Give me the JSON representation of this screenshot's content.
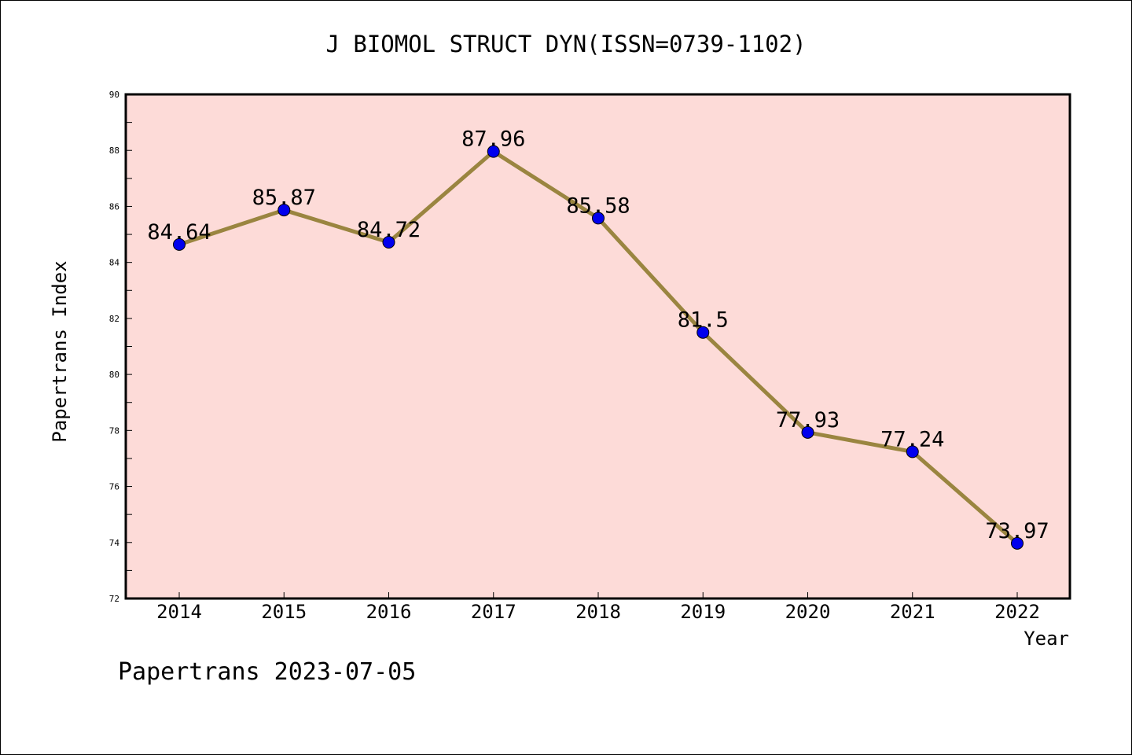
{
  "chart_data": {
    "type": "line",
    "title": "J BIOMOL STRUCT DYN(ISSN=0739-1102)",
    "xlabel": "Year",
    "ylabel": "Papertrans Index",
    "x": [
      "2014",
      "2015",
      "2016",
      "2017",
      "2018",
      "2019",
      "2020",
      "2021",
      "2022"
    ],
    "values": [
      84.64,
      85.87,
      84.72,
      87.96,
      85.58,
      81.5,
      77.93,
      77.24,
      73.97
    ],
    "data_labels": [
      "84.64",
      "85.87",
      "84.72",
      "87.96",
      "85.58",
      "81.5",
      "77.93",
      "77.24",
      "73.97"
    ],
    "ylim": [
      72,
      90
    ],
    "yticks": [
      "72",
      "74",
      "76",
      "78",
      "80",
      "82",
      "84",
      "86",
      "88",
      "90"
    ],
    "grid": false,
    "legend": "none",
    "colors": {
      "plot_background": "#fddbd8",
      "line": "#9a8540",
      "marker": "#0000ee"
    }
  },
  "footer": {
    "watermark": "Papertrans 2023-07-05"
  }
}
